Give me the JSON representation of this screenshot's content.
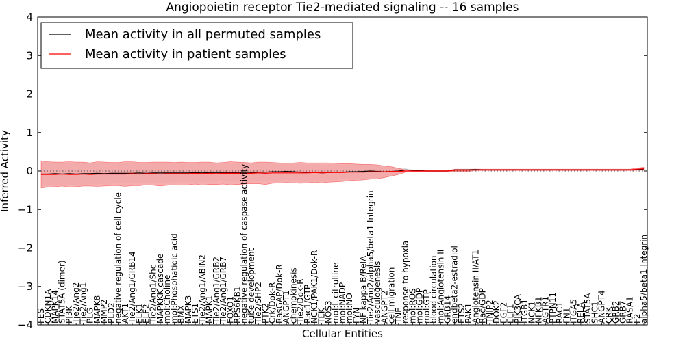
{
  "chart_data": {
    "type": "line",
    "title": "Angiopoietin receptor Tie2-mediated signaling -- 16 samples",
    "xlabel": "Cellular Entities",
    "ylabel": "Inferred Activity",
    "ylim": [
      -4,
      4
    ],
    "yticks": [
      -4,
      -3,
      -2,
      -1,
      0,
      1,
      2,
      3,
      4
    ],
    "ytick_labels": [
      "−4",
      "−3",
      "−2",
      "−1",
      "0",
      "1",
      "2",
      "3",
      "4"
    ],
    "grid": false,
    "legend_position": "top-left",
    "colors": {
      "permuted": "#000000",
      "patient": "#ff0000",
      "patient_band": "#f4a0a0",
      "permuted_band": "#d4d4dc",
      "zero_line": "#555555"
    },
    "categories": [
      "FES",
      "CDKN1A",
      "MAPK14",
      "STAT5A (dimer)",
      "PI3K",
      "Tie2/Ang2",
      "Tie2/Ang1",
      "PLG",
      "MAPK8",
      "MMP2",
      "PLD2",
      "negative regulation of cell cycle",
      "AKT1",
      "Tie2/Ang1/GRB14",
      "ELK1",
      "ELF2",
      "Tie2/Ang1/Shc",
      "MAPKKK cascade",
      "mol:Choline",
      "mol:Phosphatidic acid",
      "BMX",
      "MAPK3",
      "ETS1",
      "Tie2/Ang1/ABIN2",
      "MAPK1",
      "Tie2/Ang1/GRB2",
      "Tie2/Ang1/GRB7",
      "FOXO1",
      "RPS6KB1",
      "negative regulation of caspase activity",
      "tube development",
      "Tie2/SHP2",
      "PTK2",
      "Crk/Dok-R",
      "RasGAP/Dok-R",
      "ANGPT1",
      "chemokinesis",
      "Tie2/Dok-R",
      "Rac1/GTP",
      "NCK1/PAK1/Dok-R",
      "TEK",
      "NOS3",
      "mol:L-citrulline",
      "mol:NADP",
      "mol:NO",
      "FYN",
      "NF kappa B/RelA",
      "Tie2/Ang2/alpha5/beta1 Integrin",
      "vasculogenesis",
      "ANGPT2",
      "cell migration",
      "TNF",
      "response to hypoxia",
      "mol:ROS",
      "mol:GDP",
      "mol:GTP",
      "blood circulation",
      "mol:Angiotensin II",
      "GRB14",
      "endbeta2-estradiol",
      "ETS2",
      "PAK1",
      "Angiotensin II/AT1",
      "Rac/GDP",
      "TNIP2",
      "DOK2",
      "EGF2",
      "ELF1",
      "PIK3CA",
      "ITGB1",
      "NCK1",
      "NFKB1",
      "AGTR1",
      "PTPN11",
      "RAC1",
      "FN1",
      "ITGA5",
      "RELA",
      "STAT5A",
      "SHC1",
      "ANGPT4",
      "CRK",
      "GRB2",
      "GRB7",
      "RASA1",
      "F2",
      "alpha5/beta1 Integrin"
    ],
    "series": [
      {
        "name": "Mean activity in all permuted samples",
        "values": [
          -0.08,
          -0.08,
          -0.07,
          -0.08,
          -0.07,
          -0.08,
          -0.07,
          -0.07,
          -0.06,
          -0.07,
          -0.06,
          -0.06,
          -0.06,
          -0.06,
          -0.05,
          -0.06,
          -0.05,
          -0.05,
          -0.05,
          -0.05,
          -0.05,
          -0.05,
          -0.04,
          -0.05,
          -0.04,
          -0.04,
          -0.04,
          -0.04,
          -0.04,
          -0.03,
          -0.04,
          -0.03,
          -0.03,
          -0.02,
          -0.02,
          -0.01,
          -0.02,
          -0.03,
          -0.04,
          -0.03,
          -0.05,
          -0.04,
          -0.03,
          -0.03,
          -0.02,
          -0.02,
          -0.01,
          0.0,
          -0.01,
          -0.02,
          -0.01,
          0.0,
          0.03,
          0.02,
          0.01,
          0.0,
          0.0,
          0.0,
          0.0,
          0.03,
          0.03,
          0.03,
          0.04,
          0.03,
          0.03,
          0.03,
          0.03,
          0.03,
          0.03,
          0.03,
          0.03,
          0.03,
          0.03,
          0.03,
          0.03,
          0.03,
          0.03,
          0.03,
          0.03,
          0.03,
          0.03,
          0.03,
          0.03,
          0.03,
          0.03,
          0.04,
          0.05
        ]
      },
      {
        "name": "Mean activity in patient samples",
        "values": [
          -0.09,
          -0.09,
          -0.09,
          -0.08,
          -0.09,
          -0.09,
          -0.08,
          -0.09,
          -0.08,
          -0.08,
          -0.08,
          -0.08,
          -0.08,
          -0.07,
          -0.08,
          -0.07,
          -0.07,
          -0.08,
          -0.07,
          -0.07,
          -0.07,
          -0.07,
          -0.06,
          -0.07,
          -0.06,
          -0.07,
          -0.06,
          -0.06,
          -0.06,
          -0.06,
          -0.06,
          -0.05,
          -0.06,
          -0.05,
          -0.05,
          -0.05,
          -0.05,
          -0.05,
          -0.05,
          -0.04,
          -0.05,
          -0.04,
          -0.04,
          -0.04,
          -0.03,
          -0.03,
          -0.03,
          -0.02,
          -0.02,
          -0.02,
          -0.01,
          -0.01,
          0.0,
          0.0,
          0.0,
          0.0,
          0.0,
          0.0,
          0.0,
          0.02,
          0.02,
          0.02,
          0.03,
          0.03,
          0.03,
          0.03,
          0.03,
          0.03,
          0.03,
          0.03,
          0.03,
          0.03,
          0.03,
          0.03,
          0.03,
          0.03,
          0.03,
          0.03,
          0.03,
          0.03,
          0.03,
          0.03,
          0.03,
          0.03,
          0.03,
          0.05,
          0.06
        ]
      }
    ],
    "patient_band_half_width": [
      0.35,
      0.33,
      0.32,
      0.31,
      0.33,
      0.32,
      0.31,
      0.3,
      0.32,
      0.31,
      0.3,
      0.3,
      0.32,
      0.31,
      0.3,
      0.29,
      0.3,
      0.31,
      0.3,
      0.29,
      0.3,
      0.29,
      0.28,
      0.3,
      0.29,
      0.28,
      0.28,
      0.3,
      0.29,
      0.28,
      0.27,
      0.28,
      0.29,
      0.27,
      0.26,
      0.25,
      0.26,
      0.27,
      0.26,
      0.25,
      0.26,
      0.25,
      0.24,
      0.23,
      0.22,
      0.21,
      0.2,
      0.19,
      0.18,
      0.15,
      0.12,
      0.08,
      0.03,
      0.02,
      0.01,
      0.01,
      0.01,
      0.01,
      0.01,
      0.03,
      0.03,
      0.03,
      0.02,
      0.02,
      0.02,
      0.02,
      0.02,
      0.02,
      0.02,
      0.02,
      0.02,
      0.02,
      0.02,
      0.02,
      0.02,
      0.02,
      0.02,
      0.02,
      0.02,
      0.02,
      0.02,
      0.02,
      0.02,
      0.02,
      0.02,
      0.03,
      0.04
    ],
    "permuted_band_half_width": [
      0.3,
      0.3,
      0.29,
      0.29,
      0.28,
      0.28,
      0.28,
      0.27,
      0.27,
      0.27,
      0.26,
      0.26,
      0.26,
      0.26,
      0.25,
      0.25,
      0.25,
      0.25,
      0.25,
      0.24,
      0.24,
      0.24,
      0.24,
      0.24,
      0.24,
      0.23,
      0.23,
      0.23,
      0.23,
      0.23,
      0.23,
      0.22,
      0.22,
      0.22,
      0.22,
      0.22,
      0.21,
      0.21,
      0.21,
      0.21,
      0.2,
      0.2,
      0.2,
      0.19,
      0.19,
      0.18,
      0.18,
      0.17,
      0.16,
      0.15,
      0.12,
      0.08,
      0.04,
      0.02,
      0.01,
      0.01,
      0.01,
      0.01,
      0.01,
      0.02,
      0.02,
      0.02,
      0.02,
      0.02,
      0.02,
      0.02,
      0.02,
      0.02,
      0.02,
      0.02,
      0.02,
      0.02,
      0.02,
      0.02,
      0.02,
      0.02,
      0.02,
      0.02,
      0.02,
      0.02,
      0.02,
      0.02,
      0.02,
      0.02,
      0.02,
      0.02,
      0.03
    ]
  }
}
